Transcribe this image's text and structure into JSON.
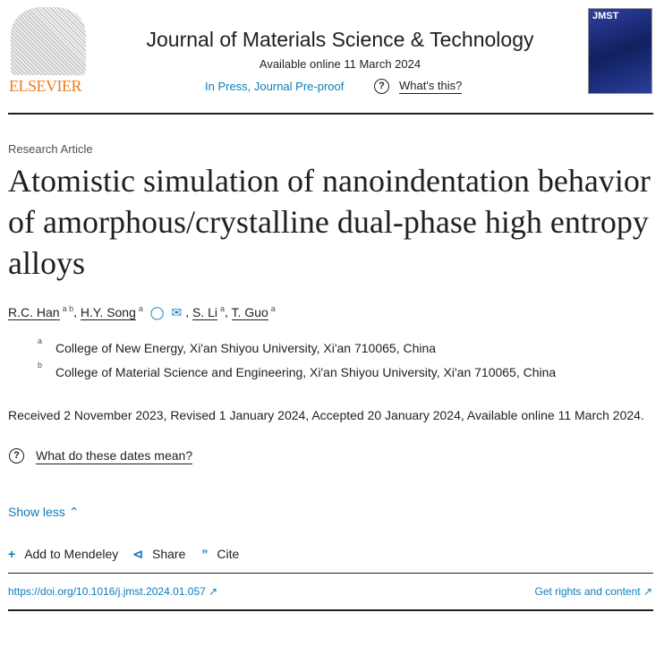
{
  "header": {
    "publisher_logo_text": "ELSEVIER",
    "journal_title": "Journal of Materials Science & Technology",
    "available_online": "Available online 11 March 2024",
    "status_link": "In Press, Journal Pre-proof",
    "help_link": "What's this?",
    "cover_text": "JMST"
  },
  "article": {
    "type": "Research Article",
    "title": "Atomistic simulation of nanoindentation behavior of amorphous/crystalline dual-phase high entropy alloys",
    "authors": [
      {
        "name": "R.C. Han",
        "aff": "a b"
      },
      {
        "name": "H.Y. Song",
        "aff": "a"
      },
      {
        "name": "S. Li",
        "aff": "a"
      },
      {
        "name": "T. Guo",
        "aff": "a"
      }
    ],
    "affiliations": [
      {
        "label": "a",
        "text": "College of New Energy, Xi'an Shiyou University, Xi'an 710065, China"
      },
      {
        "label": "b",
        "text": "College of Material Science and Engineering, Xi'an Shiyou University, Xi'an 710065, China"
      }
    ],
    "dates": "Received 2 November 2023, Revised 1 January 2024, Accepted 20 January 2024, Available online 11 March 2024.",
    "dates_help": "What do these dates mean?",
    "show_less": "Show less"
  },
  "actions": {
    "mendeley": "Add to Mendeley",
    "share": "Share",
    "cite": "Cite"
  },
  "footer": {
    "doi": "https://doi.org/10.1016/j.jmst.2024.01.057",
    "rights": "Get rights and content"
  },
  "colors": {
    "link": "#0c7dbb",
    "elsevier": "#f07b1c"
  }
}
